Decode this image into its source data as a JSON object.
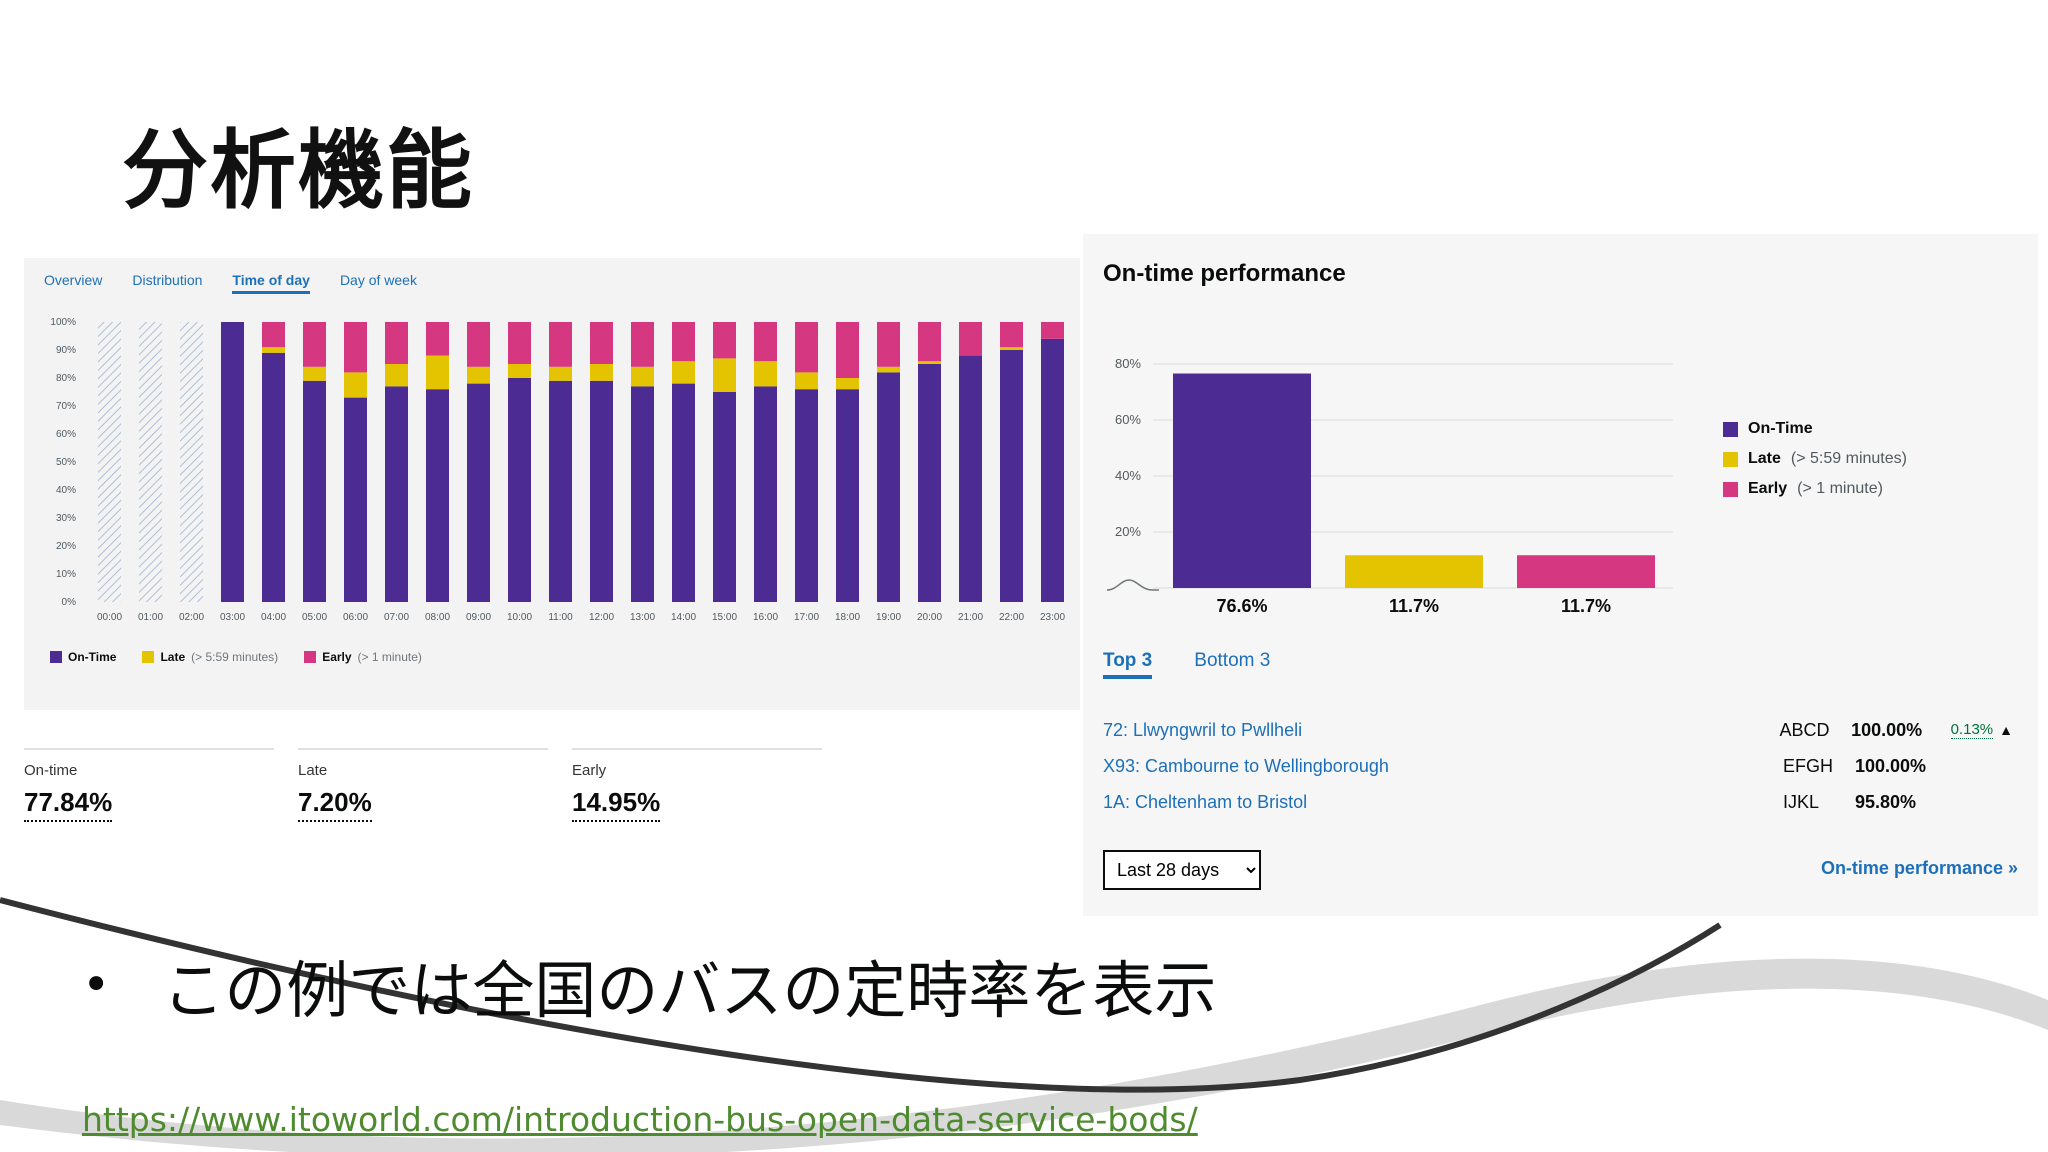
{
  "slide": {
    "title": "分析機能",
    "bullet": "この例では全国のバスの定時率を表示",
    "source_link": "https://www.itoworld.com/introduction-bus-open-data-service-bods/"
  },
  "colors": {
    "on_time": "#4c2c92",
    "late": "#e4c400",
    "early": "#d53880",
    "hatch": "#aebfd6",
    "link": "#1d70b8"
  },
  "left_panel": {
    "tabs": [
      {
        "label": "Overview",
        "active": false
      },
      {
        "label": "Distribution",
        "active": false
      },
      {
        "label": "Time of day",
        "active": true
      },
      {
        "label": "Day of week",
        "active": false
      }
    ],
    "legend": [
      {
        "label": "On-Time",
        "note": ""
      },
      {
        "label": "Late",
        "note": "(> 5:59 minutes)"
      },
      {
        "label": "Early",
        "note": "(> 1 minute)"
      }
    ],
    "stats": [
      {
        "label": "On-time",
        "value": "77.84%"
      },
      {
        "label": "Late",
        "value": "7.20%"
      },
      {
        "label": "Early",
        "value": "14.95%"
      }
    ]
  },
  "right_panel": {
    "title": "On-time performance",
    "legend": [
      {
        "label": "On-Time",
        "note": ""
      },
      {
        "label": "Late",
        "note": "(> 5:59 minutes)"
      },
      {
        "label": "Early",
        "note": "(> 1 minute)"
      }
    ],
    "tabs": [
      {
        "label": "Top 3",
        "active": true
      },
      {
        "label": "Bottom 3",
        "active": false
      }
    ],
    "routes": [
      {
        "name": "72: Llwyngwril to Pwllheli",
        "code": "ABCD",
        "pct": "100.00%",
        "change": "0.13%",
        "arrow": "▲"
      },
      {
        "name": "X93: Cambourne to Wellingborough",
        "code": "EFGH",
        "pct": "100.00%",
        "change": "",
        "arrow": ""
      },
      {
        "name": "1A: Cheltenham to Bristol",
        "code": "IJKL",
        "pct": "95.80%",
        "change": "",
        "arrow": ""
      }
    ],
    "period": "Last 28 days",
    "link": "On-time performance »"
  },
  "chart_data": [
    {
      "type": "bar",
      "stacked": true,
      "categories": [
        "00:00",
        "01:00",
        "02:00",
        "03:00",
        "04:00",
        "05:00",
        "06:00",
        "07:00",
        "08:00",
        "09:00",
        "10:00",
        "11:00",
        "12:00",
        "13:00",
        "14:00",
        "15:00",
        "16:00",
        "17:00",
        "18:00",
        "19:00",
        "20:00",
        "21:00",
        "22:00",
        "23:00"
      ],
      "no_data": [
        "00:00",
        "01:00",
        "02:00"
      ],
      "y_ticks": [
        "0%",
        "10%",
        "20%",
        "30%",
        "40%",
        "50%",
        "60%",
        "70%",
        "80%",
        "90%",
        "100%"
      ],
      "ylim": [
        0,
        100
      ],
      "series": [
        {
          "name": "On-Time",
          "values": [
            null,
            null,
            null,
            100,
            89,
            79,
            73,
            77,
            76,
            78,
            80,
            79,
            79,
            77,
            78,
            75,
            77,
            76,
            76,
            82,
            85,
            88,
            90,
            94
          ]
        },
        {
          "name": "Late",
          "values": [
            null,
            null,
            null,
            0,
            2,
            5,
            9,
            8,
            12,
            6,
            5,
            5,
            6,
            7,
            8,
            12,
            9,
            6,
            4,
            2,
            1,
            0,
            1,
            0
          ]
        },
        {
          "name": "Early",
          "values": [
            null,
            null,
            null,
            0,
            9,
            16,
            18,
            15,
            12,
            16,
            15,
            16,
            15,
            16,
            14,
            13,
            14,
            18,
            20,
            16,
            14,
            12,
            9,
            6
          ]
        }
      ]
    },
    {
      "type": "bar",
      "categories": [
        "On-Time",
        "Late",
        "Early"
      ],
      "values": [
        76.6,
        11.7,
        11.7
      ],
      "labels": [
        "76.6%",
        "11.7%",
        "11.7%"
      ],
      "y_ticks": [
        "20%",
        "40%",
        "60%",
        "80%"
      ],
      "ylim": [
        0,
        80
      ]
    }
  ]
}
